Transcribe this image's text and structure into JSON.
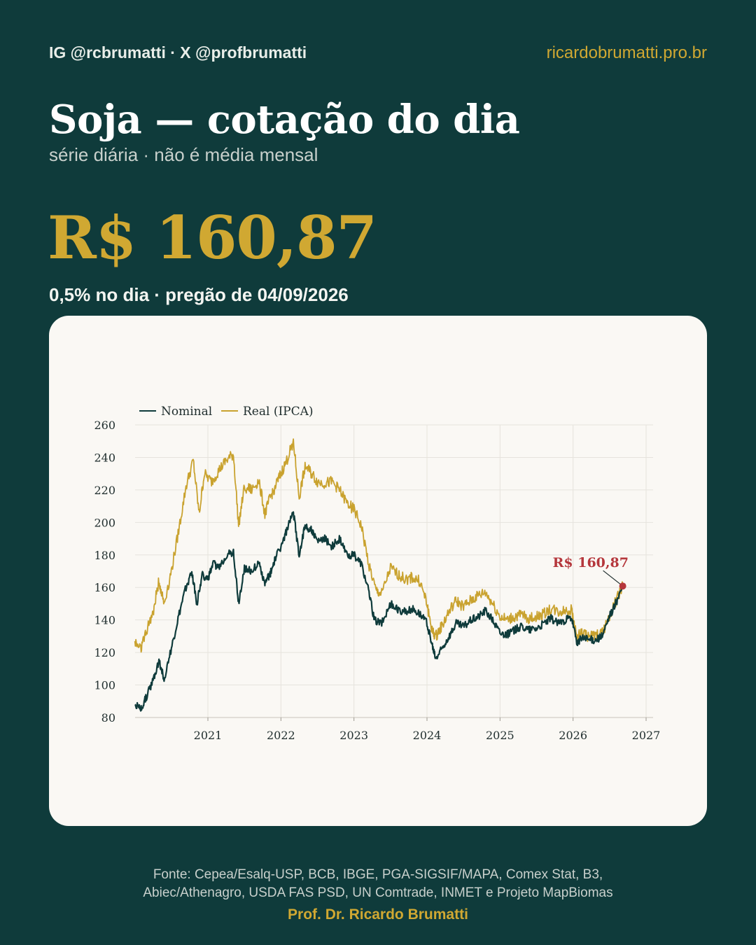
{
  "header": {
    "handles": "IG @rcbrumatti · X @profbrumatti",
    "site": "ricardobrumatti.pro.br"
  },
  "title": "Soja — cotação do dia",
  "subtitle": "série diária · não é média mensal",
  "price": "R$ 160,87",
  "change": "0,5% no dia · pregão de 04/09/2026",
  "footer": {
    "source_line1": "Fonte: Cepea/Esalq-USP, BCB, IBGE, PGA-SIGSIF/MAPA, Comex Stat, B3,",
    "source_line2": "Abiec/Athenagro, USDA FAS PSD, UN Comtrade, INMET e Projeto MapBiomas",
    "author": "Prof. Dr. Ricardo Brumatti"
  },
  "colors": {
    "background": "#0f3b3b",
    "accent": "#d0a832",
    "nominal": "#0f3b3b",
    "real": "#c9a22e",
    "highlight": "#b5373c",
    "card": "#faf8f4"
  },
  "chart_data": {
    "type": "line",
    "title": "",
    "xlabel": "",
    "ylabel": "",
    "xlim": [
      2020.0,
      2027.0
    ],
    "ylim": [
      80,
      260
    ],
    "x_ticks": [
      2021,
      2022,
      2023,
      2024,
      2025,
      2026,
      2027
    ],
    "y_ticks": [
      80,
      100,
      120,
      140,
      160,
      180,
      200,
      220,
      240,
      260
    ],
    "grid": true,
    "legend_position": "top-left",
    "annotation": {
      "text": "R$ 160,87",
      "x": 2026.68,
      "y": 160.87
    },
    "series": [
      {
        "name": "Nominal",
        "points": [
          [
            2020.0,
            88
          ],
          [
            2020.08,
            85
          ],
          [
            2020.15,
            92
          ],
          [
            2020.25,
            103
          ],
          [
            2020.33,
            115
          ],
          [
            2020.4,
            104
          ],
          [
            2020.5,
            122
          ],
          [
            2020.6,
            142
          ],
          [
            2020.7,
            160
          ],
          [
            2020.78,
            170
          ],
          [
            2020.85,
            150
          ],
          [
            2020.92,
            168
          ],
          [
            2021.0,
            165
          ],
          [
            2021.08,
            175
          ],
          [
            2021.15,
            172
          ],
          [
            2021.25,
            180
          ],
          [
            2021.35,
            182
          ],
          [
            2021.42,
            150
          ],
          [
            2021.5,
            172
          ],
          [
            2021.6,
            170
          ],
          [
            2021.7,
            175
          ],
          [
            2021.78,
            162
          ],
          [
            2021.85,
            168
          ],
          [
            2021.92,
            178
          ],
          [
            2022.0,
            185
          ],
          [
            2022.08,
            195
          ],
          [
            2022.17,
            206
          ],
          [
            2022.25,
            180
          ],
          [
            2022.33,
            198
          ],
          [
            2022.42,
            195
          ],
          [
            2022.5,
            188
          ],
          [
            2022.6,
            190
          ],
          [
            2022.7,
            185
          ],
          [
            2022.8,
            190
          ],
          [
            2022.9,
            180
          ],
          [
            2023.0,
            180
          ],
          [
            2023.1,
            175
          ],
          [
            2023.2,
            158
          ],
          [
            2023.28,
            140
          ],
          [
            2023.38,
            138
          ],
          [
            2023.5,
            150
          ],
          [
            2023.6,
            146
          ],
          [
            2023.7,
            145
          ],
          [
            2023.8,
            147
          ],
          [
            2023.9,
            144
          ],
          [
            2024.0,
            138
          ],
          [
            2024.07,
            124
          ],
          [
            2024.12,
            116
          ],
          [
            2024.2,
            122
          ],
          [
            2024.3,
            130
          ],
          [
            2024.4,
            138
          ],
          [
            2024.5,
            136
          ],
          [
            2024.6,
            140
          ],
          [
            2024.7,
            142
          ],
          [
            2024.8,
            146
          ],
          [
            2024.9,
            140
          ],
          [
            2025.0,
            132
          ],
          [
            2025.1,
            131
          ],
          [
            2025.2,
            134
          ],
          [
            2025.3,
            136
          ],
          [
            2025.4,
            134
          ],
          [
            2025.5,
            135
          ],
          [
            2025.6,
            138
          ],
          [
            2025.7,
            141
          ],
          [
            2025.8,
            138
          ],
          [
            2025.9,
            140
          ],
          [
            2025.98,
            141
          ],
          [
            2026.05,
            126
          ],
          [
            2026.12,
            129
          ],
          [
            2026.2,
            128
          ],
          [
            2026.3,
            128
          ],
          [
            2026.4,
            130
          ],
          [
            2026.5,
            142
          ],
          [
            2026.6,
            152
          ],
          [
            2026.68,
            160.87
          ]
        ]
      },
      {
        "name": "Real (IPCA)",
        "points": [
          [
            2020.0,
            127
          ],
          [
            2020.08,
            123
          ],
          [
            2020.15,
            132
          ],
          [
            2020.25,
            145
          ],
          [
            2020.33,
            164
          ],
          [
            2020.4,
            150
          ],
          [
            2020.5,
            170
          ],
          [
            2020.6,
            195
          ],
          [
            2020.7,
            222
          ],
          [
            2020.8,
            238
          ],
          [
            2020.88,
            205
          ],
          [
            2020.95,
            230
          ],
          [
            2021.05,
            225
          ],
          [
            2021.15,
            232
          ],
          [
            2021.25,
            238
          ],
          [
            2021.35,
            242
          ],
          [
            2021.42,
            198
          ],
          [
            2021.5,
            222
          ],
          [
            2021.6,
            220
          ],
          [
            2021.7,
            226
          ],
          [
            2021.78,
            205
          ],
          [
            2021.85,
            215
          ],
          [
            2021.92,
            222
          ],
          [
            2022.0,
            230
          ],
          [
            2022.08,
            238
          ],
          [
            2022.17,
            250
          ],
          [
            2022.25,
            215
          ],
          [
            2022.33,
            235
          ],
          [
            2022.42,
            230
          ],
          [
            2022.5,
            225
          ],
          [
            2022.6,
            224
          ],
          [
            2022.7,
            225
          ],
          [
            2022.8,
            220
          ],
          [
            2022.9,
            212
          ],
          [
            2023.0,
            208
          ],
          [
            2023.1,
            198
          ],
          [
            2023.2,
            175
          ],
          [
            2023.3,
            158
          ],
          [
            2023.38,
            156
          ],
          [
            2023.5,
            172
          ],
          [
            2023.6,
            168
          ],
          [
            2023.7,
            165
          ],
          [
            2023.8,
            166
          ],
          [
            2023.9,
            164
          ],
          [
            2024.0,
            150
          ],
          [
            2024.07,
            133
          ],
          [
            2024.12,
            130
          ],
          [
            2024.2,
            136
          ],
          [
            2024.3,
            145
          ],
          [
            2024.4,
            152
          ],
          [
            2024.5,
            148
          ],
          [
            2024.6,
            152
          ],
          [
            2024.7,
            155
          ],
          [
            2024.8,
            157
          ],
          [
            2024.9,
            150
          ],
          [
            2025.0,
            142
          ],
          [
            2025.1,
            140
          ],
          [
            2025.2,
            142
          ],
          [
            2025.3,
            143
          ],
          [
            2025.4,
            141
          ],
          [
            2025.5,
            142
          ],
          [
            2025.6,
            144
          ],
          [
            2025.7,
            147
          ],
          [
            2025.8,
            145
          ],
          [
            2025.9,
            146
          ],
          [
            2025.98,
            146
          ],
          [
            2026.05,
            130
          ],
          [
            2026.12,
            132
          ],
          [
            2026.2,
            130
          ],
          [
            2026.3,
            130
          ],
          [
            2026.4,
            132
          ],
          [
            2026.5,
            143
          ],
          [
            2026.6,
            153
          ],
          [
            2026.68,
            160.87
          ]
        ]
      }
    ]
  }
}
